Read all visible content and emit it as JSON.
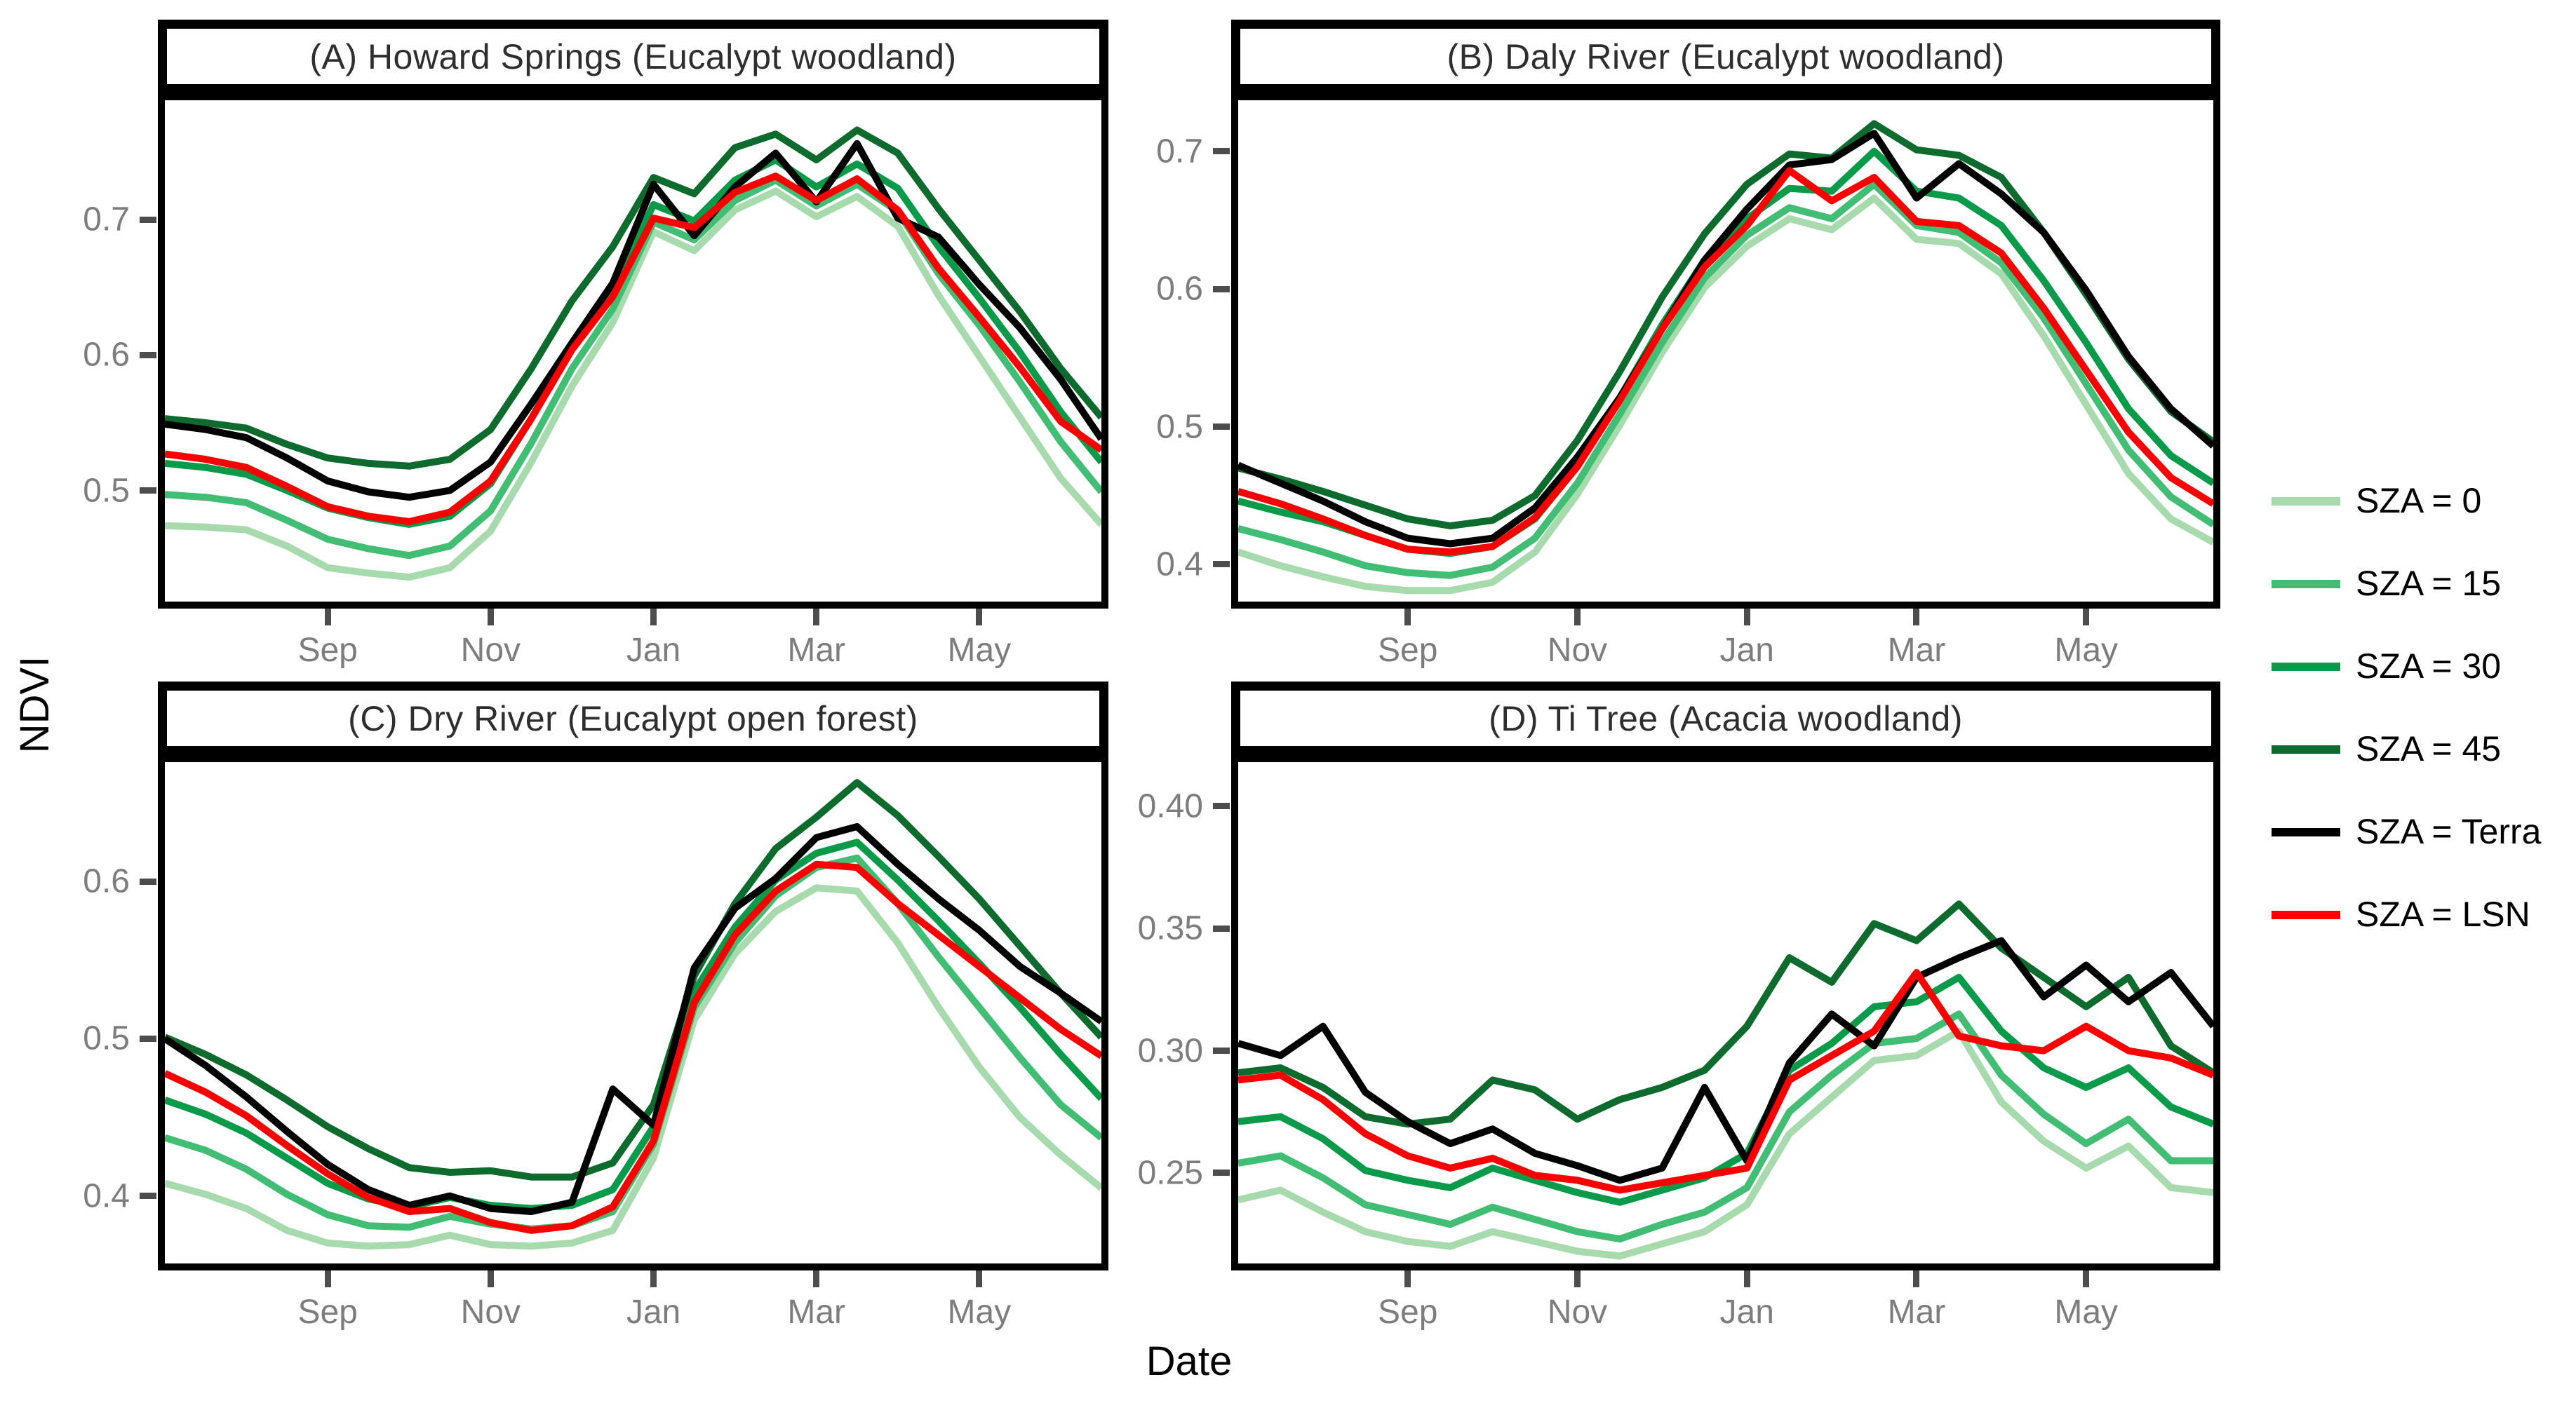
{
  "figure": {
    "y_axis_title": "NDVI",
    "x_axis_title": "Date",
    "background_color": "#FFFFFF",
    "panel_border_color": "#000000",
    "strip_border_color": "#000000",
    "strip_text_color": "#2E2E2E",
    "tick_label_color": "#7D7D7D",
    "tick_mark_color": "#4D4D4D"
  },
  "legend": {
    "position": "right",
    "items": [
      {
        "label": "SZA = 0",
        "color": "#A7DBAD"
      },
      {
        "label": "SZA = 15",
        "color": "#41BE73"
      },
      {
        "label": "SZA = 30",
        "color": "#0A9B4A"
      },
      {
        "label": "SZA = 45",
        "color": "#0C6B2D"
      },
      {
        "label": "SZA = Terra",
        "color": "#000000"
      },
      {
        "label": "SZA = LSN",
        "color": "#FA0000"
      }
    ]
  },
  "chart_data": {
    "type": "line",
    "layout": "2x2 facet grid, free y scales, shared x axis (Jul through Jun)",
    "x_unit": "months since 1 July",
    "x": [
      0,
      0.5,
      1,
      1.5,
      2,
      2.5,
      3,
      3.5,
      4,
      4.5,
      5,
      5.5,
      6,
      6.5,
      7,
      7.5,
      8,
      8.5,
      9,
      9.5,
      10,
      10.5,
      11,
      11.5
    ],
    "x_axis": {
      "domain": [
        0,
        11.5
      ],
      "tick_months": [
        2,
        4,
        6,
        8,
        10
      ],
      "tick_labels": [
        "Sep",
        "Nov",
        "Jan",
        "Mar",
        "May"
      ]
    },
    "series_colors": {
      "SZA = 0": "#A7DBAD",
      "SZA = 15": "#41BE73",
      "SZA = 30": "#0A9B4A",
      "SZA = 45": "#0C6B2D",
      "SZA = Terra": "#000000",
      "SZA = LSN": "#FA0000"
    },
    "panels": [
      {
        "id": "A",
        "title": "(A) Howard Springs (Eucalypt woodland)",
        "ylabel": "NDVI",
        "ylim": [
          0.418,
          0.788
        ],
        "ytick_values": [
          0.5,
          0.6,
          0.7
        ],
        "ytick_labels": [
          "0.5",
          "0.6",
          "0.7"
        ],
        "series": [
          {
            "name": "SZA = 0",
            "values": [
              0.474,
              0.473,
              0.471,
              0.459,
              0.443,
              0.439,
              0.436,
              0.443,
              0.47,
              0.521,
              0.577,
              0.624,
              0.691,
              0.677,
              0.707,
              0.721,
              0.702,
              0.717,
              0.695,
              0.644,
              0.599,
              0.554,
              0.509,
              0.475
            ]
          },
          {
            "name": "SZA = 15",
            "values": [
              0.497,
              0.495,
              0.491,
              0.478,
              0.464,
              0.457,
              0.452,
              0.459,
              0.485,
              0.535,
              0.59,
              0.634,
              0.698,
              0.685,
              0.714,
              0.729,
              0.71,
              0.726,
              0.706,
              0.66,
              0.622,
              0.58,
              0.536,
              0.499
            ]
          },
          {
            "name": "SZA = 30",
            "values": [
              0.52,
              0.517,
              0.512,
              0.5,
              0.487,
              0.48,
              0.475,
              0.481,
              0.505,
              0.553,
              0.607,
              0.648,
              0.711,
              0.699,
              0.729,
              0.744,
              0.724,
              0.741,
              0.723,
              0.68,
              0.642,
              0.602,
              0.558,
              0.521
            ]
          },
          {
            "name": "SZA = 45",
            "values": [
              0.553,
              0.55,
              0.546,
              0.534,
              0.524,
              0.52,
              0.518,
              0.523,
              0.545,
              0.59,
              0.64,
              0.68,
              0.731,
              0.719,
              0.753,
              0.763,
              0.744,
              0.766,
              0.749,
              0.708,
              0.67,
              0.632,
              0.59,
              0.554
            ]
          },
          {
            "name": "SZA = Terra",
            "values": [
              0.549,
              0.545,
              0.539,
              0.524,
              0.507,
              0.499,
              0.495,
              0.5,
              0.521,
              0.564,
              0.609,
              0.653,
              0.726,
              0.688,
              0.724,
              0.749,
              0.713,
              0.756,
              0.701,
              0.687,
              0.652,
              0.62,
              0.582,
              0.538
            ]
          },
          {
            "name": "SZA = LSN",
            "values": [
              0.527,
              0.523,
              0.517,
              0.503,
              0.488,
              0.481,
              0.477,
              0.484,
              0.507,
              0.553,
              0.604,
              0.643,
              0.701,
              0.694,
              0.72,
              0.732,
              0.714,
              0.73,
              0.707,
              0.664,
              0.628,
              0.591,
              0.551,
              0.53
            ]
          }
        ]
      },
      {
        "id": "B",
        "title": "(B) Daly River (Eucalypt woodland)",
        "ylabel": "NDVI",
        "ylim": [
          0.373,
          0.737
        ],
        "ytick_values": [
          0.4,
          0.5,
          0.6,
          0.7
        ],
        "ytick_labels": [
          "0.4",
          "0.5",
          "0.6",
          "0.7"
        ],
        "series": [
          {
            "name": "SZA = 0",
            "values": [
              0.409,
              0.399,
              0.391,
              0.384,
              0.381,
              0.381,
              0.387,
              0.409,
              0.451,
              0.501,
              0.554,
              0.601,
              0.631,
              0.651,
              0.643,
              0.666,
              0.636,
              0.633,
              0.611,
              0.566,
              0.516,
              0.466,
              0.433,
              0.416
            ]
          },
          {
            "name": "SZA = 15",
            "values": [
              0.426,
              0.418,
              0.409,
              0.399,
              0.394,
              0.392,
              0.398,
              0.419,
              0.459,
              0.509,
              0.561,
              0.608,
              0.639,
              0.659,
              0.651,
              0.676,
              0.646,
              0.641,
              0.619,
              0.579,
              0.531,
              0.483,
              0.449,
              0.429
            ]
          },
          {
            "name": "SZA = 30",
            "values": [
              0.446,
              0.438,
              0.431,
              0.421,
              0.411,
              0.408,
              0.413,
              0.433,
              0.471,
              0.521,
              0.574,
              0.621,
              0.651,
              0.673,
              0.671,
              0.7,
              0.671,
              0.666,
              0.646,
              0.606,
              0.561,
              0.513,
              0.479,
              0.459
            ]
          },
          {
            "name": "SZA = 45",
            "values": [
              0.47,
              0.462,
              0.453,
              0.443,
              0.433,
              0.428,
              0.432,
              0.45,
              0.49,
              0.54,
              0.594,
              0.64,
              0.676,
              0.698,
              0.695,
              0.72,
              0.701,
              0.697,
              0.681,
              0.641,
              0.596,
              0.549,
              0.511,
              0.489
            ]
          },
          {
            "name": "SZA = Terra",
            "values": [
              0.472,
              0.459,
              0.446,
              0.431,
              0.419,
              0.415,
              0.419,
              0.441,
              0.478,
              0.521,
              0.571,
              0.621,
              0.658,
              0.69,
              0.694,
              0.713,
              0.666,
              0.691,
              0.669,
              0.641,
              0.599,
              0.551,
              0.513,
              0.486
            ]
          },
          {
            "name": "SZA = LSN",
            "values": [
              0.453,
              0.444,
              0.433,
              0.421,
              0.411,
              0.409,
              0.413,
              0.434,
              0.471,
              0.519,
              0.571,
              0.616,
              0.646,
              0.686,
              0.664,
              0.681,
              0.649,
              0.646,
              0.626,
              0.586,
              0.541,
              0.496,
              0.463,
              0.444
            ]
          }
        ]
      },
      {
        "id": "C",
        "title": "(C) Dry River (Eucalypt open forest)",
        "ylabel": "NDVI",
        "ylim": [
          0.357,
          0.676
        ],
        "ytick_values": [
          0.4,
          0.5,
          0.6
        ],
        "ytick_labels": [
          "0.4",
          "0.5",
          "0.6"
        ],
        "series": [
          {
            "name": "SZA = 0",
            "values": [
              0.408,
              0.401,
              0.392,
              0.378,
              0.37,
              0.368,
              0.369,
              0.375,
              0.369,
              0.368,
              0.37,
              0.378,
              0.424,
              0.512,
              0.554,
              0.581,
              0.596,
              0.594,
              0.561,
              0.52,
              0.482,
              0.45,
              0.426,
              0.405
            ]
          },
          {
            "name": "SZA = 15",
            "values": [
              0.437,
              0.429,
              0.417,
              0.401,
              0.388,
              0.381,
              0.38,
              0.387,
              0.382,
              0.379,
              0.381,
              0.39,
              0.433,
              0.52,
              0.561,
              0.591,
              0.609,
              0.615,
              0.586,
              0.552,
              0.52,
              0.488,
              0.458,
              0.437
            ]
          },
          {
            "name": "SZA = 30",
            "values": [
              0.461,
              0.452,
              0.44,
              0.424,
              0.408,
              0.398,
              0.393,
              0.399,
              0.394,
              0.392,
              0.394,
              0.404,
              0.444,
              0.53,
              0.571,
              0.601,
              0.618,
              0.625,
              0.601,
              0.575,
              0.548,
              0.52,
              0.49,
              0.462
            ]
          },
          {
            "name": "SZA = 45",
            "values": [
              0.501,
              0.49,
              0.477,
              0.461,
              0.444,
              0.43,
              0.418,
              0.415,
              0.416,
              0.412,
              0.412,
              0.421,
              0.458,
              0.54,
              0.586,
              0.621,
              0.641,
              0.663,
              0.642,
              0.616,
              0.589,
              0.559,
              0.529,
              0.501
            ]
          },
          {
            "name": "SZA = Terra",
            "values": [
              0.5,
              0.483,
              0.463,
              0.441,
              0.42,
              0.404,
              0.394,
              0.4,
              0.392,
              0.39,
              0.396,
              0.468,
              0.445,
              0.545,
              0.583,
              0.602,
              0.628,
              0.635,
              0.611,
              0.589,
              0.569,
              0.546,
              0.529,
              0.511
            ]
          },
          {
            "name": "SZA = LSN",
            "values": [
              0.478,
              0.466,
              0.451,
              0.432,
              0.414,
              0.399,
              0.39,
              0.392,
              0.383,
              0.378,
              0.381,
              0.393,
              0.435,
              0.523,
              0.566,
              0.594,
              0.611,
              0.609,
              0.586,
              0.566,
              0.546,
              0.526,
              0.506,
              0.489
            ]
          }
        ]
      },
      {
        "id": "D",
        "title": "(D) Ti Tree (Acacia woodland)",
        "ylabel": "NDVI",
        "ylim": [
          0.213,
          0.418
        ],
        "ytick_values": [
          0.25,
          0.3,
          0.35,
          0.4
        ],
        "ytick_labels": [
          "0.25",
          "0.30",
          "0.35",
          "0.40"
        ],
        "series": [
          {
            "name": "SZA = 0",
            "values": [
              0.239,
              0.243,
              0.234,
              0.226,
              0.222,
              0.22,
              0.226,
              0.222,
              0.218,
              0.216,
              0.221,
              0.226,
              0.237,
              0.266,
              0.281,
              0.296,
              0.298,
              0.308,
              0.279,
              0.263,
              0.252,
              0.261,
              0.244,
              0.242
            ]
          },
          {
            "name": "SZA = 15",
            "values": [
              0.254,
              0.257,
              0.248,
              0.237,
              0.233,
              0.229,
              0.236,
              0.231,
              0.226,
              0.223,
              0.229,
              0.234,
              0.244,
              0.275,
              0.29,
              0.303,
              0.305,
              0.315,
              0.29,
              0.274,
              0.262,
              0.272,
              0.255,
              0.255
            ]
          },
          {
            "name": "SZA = 30",
            "values": [
              0.271,
              0.273,
              0.264,
              0.251,
              0.247,
              0.244,
              0.252,
              0.247,
              0.242,
              0.238,
              0.243,
              0.248,
              0.258,
              0.292,
              0.303,
              0.318,
              0.32,
              0.33,
              0.308,
              0.293,
              0.285,
              0.293,
              0.277,
              0.27
            ]
          },
          {
            "name": "SZA = 45",
            "values": [
              0.291,
              0.293,
              0.285,
              0.273,
              0.27,
              0.272,
              0.288,
              0.284,
              0.272,
              0.28,
              0.285,
              0.292,
              0.31,
              0.338,
              0.328,
              0.352,
              0.345,
              0.36,
              0.342,
              0.33,
              0.318,
              0.33,
              0.302,
              0.291
            ]
          },
          {
            "name": "SZA = Terra",
            "values": [
              0.303,
              0.298,
              0.31,
              0.283,
              0.271,
              0.262,
              0.268,
              0.258,
              0.253,
              0.247,
              0.252,
              0.285,
              0.255,
              0.295,
              0.315,
              0.302,
              0.33,
              0.338,
              0.345,
              0.322,
              0.335,
              0.32,
              0.332,
              0.31
            ]
          },
          {
            "name": "SZA = LSN",
            "values": [
              0.288,
              0.29,
              0.28,
              0.266,
              0.257,
              0.252,
              0.256,
              0.249,
              0.247,
              0.243,
              0.246,
              0.249,
              0.252,
              0.288,
              0.298,
              0.308,
              0.332,
              0.306,
              0.302,
              0.3,
              0.31,
              0.3,
              0.297,
              0.29
            ]
          }
        ]
      }
    ]
  }
}
